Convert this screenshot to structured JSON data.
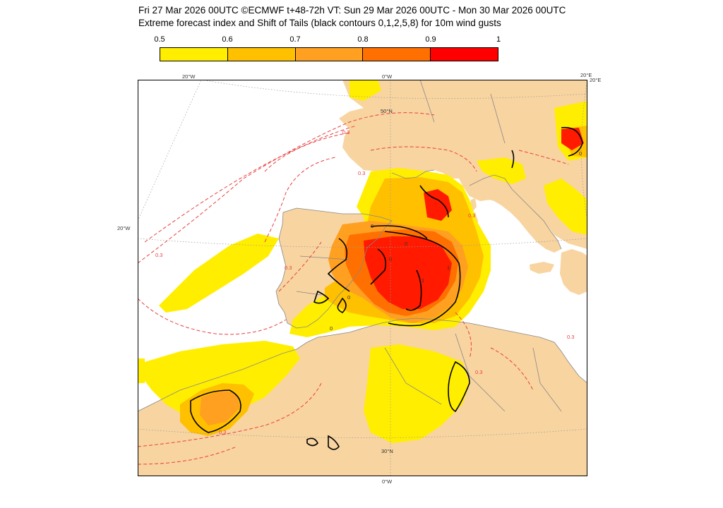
{
  "header": {
    "line1": "Fri 27 Mar 2026 00UTC ©ECMWF t+48-72h  VT: Sun 29 Mar 2026 00UTC - Mon 30 Mar 2026 00UTC",
    "line2": "Extreme forecast index and Shift of Tails (black contours 0,1,2,5,8) for 10m wind gusts"
  },
  "legend": {
    "ticks": [
      "0.5",
      "0.6",
      "0.7",
      "0.8",
      "0.9",
      "1"
    ],
    "colors": [
      "#ffee00",
      "#ffc000",
      "#ffa020",
      "#ff7000",
      "#ff0000"
    ]
  },
  "map": {
    "colors": {
      "land": "#f8d4a0",
      "sea": "#ffffff",
      "yellow": "#ffee00",
      "gold": "#ffc000",
      "orange": "#ffa020",
      "deep_orange": "#ff7000",
      "red": "#ff1a00",
      "contour_dashed": "#e84040",
      "border": "#888888",
      "grid": "#999999"
    },
    "grid_labels": {
      "top_w20": "20°W",
      "top_0": "0°W",
      "top_e20a": "20°E",
      "top_e20b": "20°E",
      "left_w20": "20°W",
      "lat50": "50°N",
      "lat30": "30°N",
      "bottom_0": "0°W"
    },
    "contour_labels": [
      "0.3",
      "0.3",
      "0.3",
      "0.3",
      "0.3",
      "0.3",
      "0.3",
      "0.3"
    ],
    "sot_labels": [
      "0",
      "0",
      "0",
      "0",
      "1",
      "1",
      "0",
      "0"
    ]
  }
}
